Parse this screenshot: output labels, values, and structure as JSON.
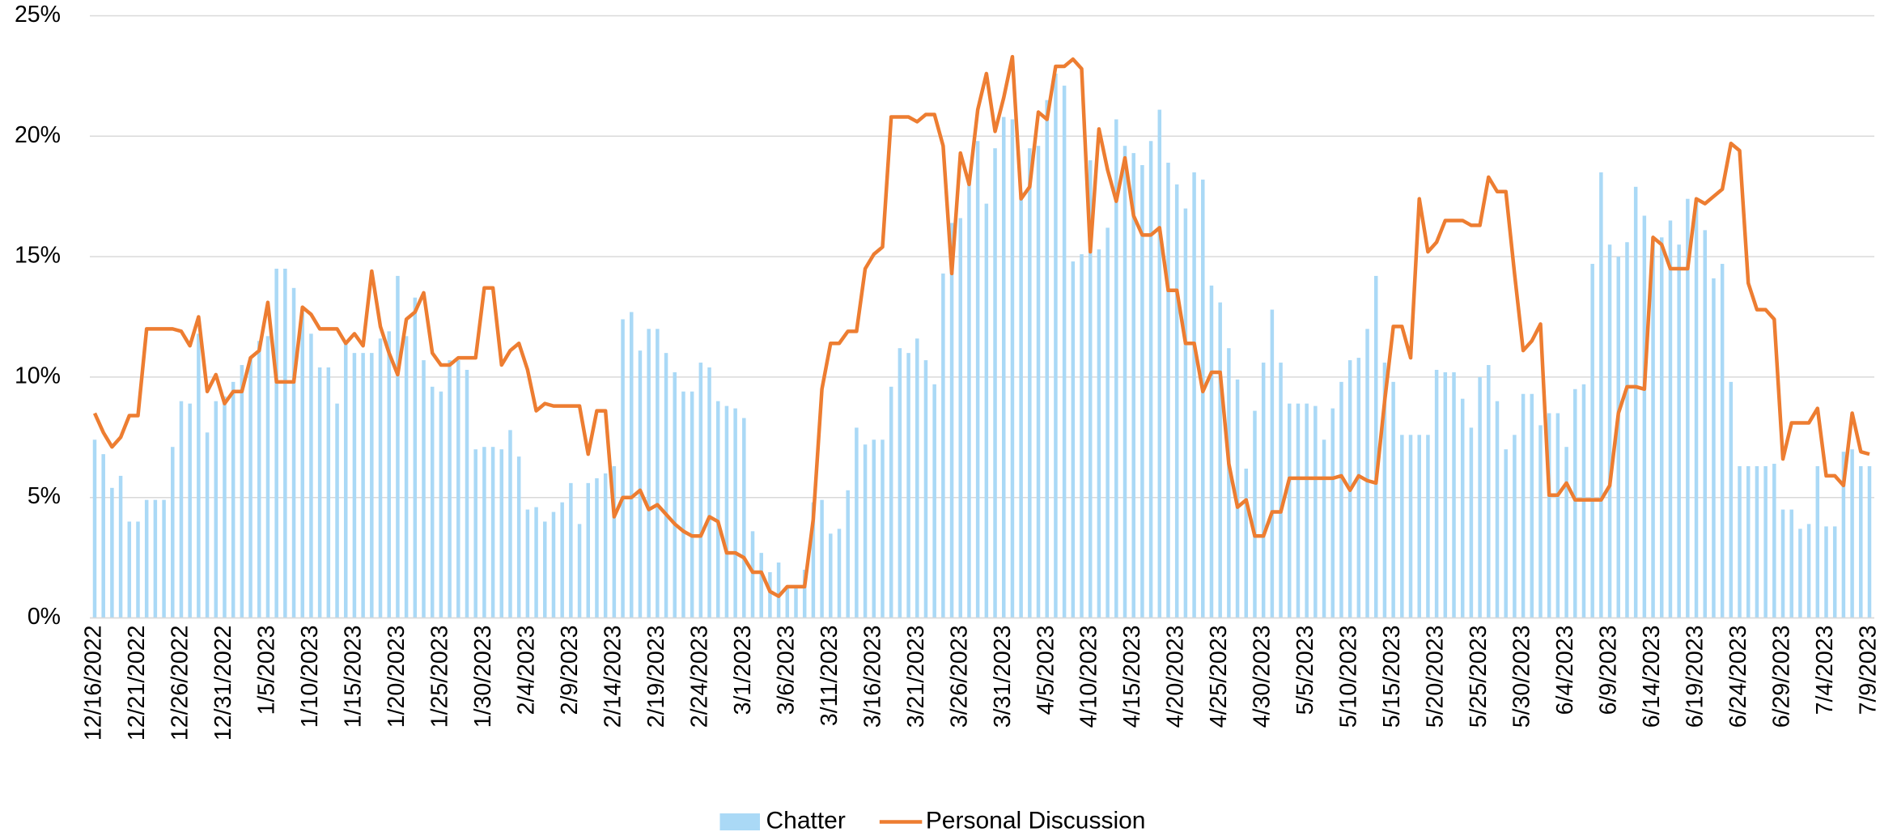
{
  "chart_data": {
    "type": "bar",
    "categories": [
      "12/16/2022",
      null,
      null,
      null,
      null,
      "12/21/2022",
      null,
      null,
      null,
      null,
      "12/26/2022",
      null,
      null,
      null,
      null,
      "12/31/2022",
      null,
      null,
      null,
      null,
      "1/5/2023",
      null,
      null,
      null,
      null,
      "1/10/2023",
      null,
      null,
      null,
      null,
      "1/15/2023",
      null,
      null,
      null,
      null,
      "1/20/2023",
      null,
      null,
      null,
      null,
      "1/25/2023",
      null,
      null,
      null,
      null,
      "1/30/2023",
      null,
      null,
      null,
      null,
      "2/4/2023",
      null,
      null,
      null,
      null,
      "2/9/2023",
      null,
      null,
      null,
      null,
      "2/14/2023",
      null,
      null,
      null,
      null,
      "2/19/2023",
      null,
      null,
      null,
      null,
      "2/24/2023",
      null,
      null,
      null,
      null,
      "3/1/2023",
      null,
      null,
      null,
      null,
      "3/6/2023",
      null,
      null,
      null,
      null,
      "3/11/2023",
      null,
      null,
      null,
      null,
      "3/16/2023",
      null,
      null,
      null,
      null,
      "3/21/2023",
      null,
      null,
      null,
      null,
      "3/26/2023",
      null,
      null,
      null,
      null,
      "3/31/2023",
      null,
      null,
      null,
      null,
      "4/5/2023",
      null,
      null,
      null,
      null,
      "4/10/2023",
      null,
      null,
      null,
      null,
      "4/15/2023",
      null,
      null,
      null,
      null,
      "4/20/2023",
      null,
      null,
      null,
      null,
      "4/25/2023",
      null,
      null,
      null,
      null,
      "4/30/2023",
      null,
      null,
      null,
      null,
      "5/5/2023",
      null,
      null,
      null,
      null,
      "5/10/2023",
      null,
      null,
      null,
      null,
      "5/15/2023",
      null,
      null,
      null,
      null,
      "5/20/2023",
      null,
      null,
      null,
      null,
      "5/25/2023",
      null,
      null,
      null,
      null,
      "5/30/2023",
      null,
      null,
      null,
      null,
      "6/4/2023",
      null,
      null,
      null,
      null,
      "6/9/2023",
      null,
      null,
      null,
      null,
      "6/14/2023",
      null,
      null,
      null,
      null,
      "6/19/2023",
      null,
      null,
      null,
      null,
      "6/24/2023",
      null,
      null,
      null,
      null,
      "6/29/2023",
      null,
      null,
      null,
      null,
      "7/4/2023",
      null,
      null,
      null,
      null,
      "7/9/2023"
    ],
    "series": [
      {
        "name": "Chatter",
        "type": "bar",
        "color": "#aad9f6",
        "values": [
          7.4,
          6.8,
          5.4,
          5.9,
          4.0,
          4.0,
          4.9,
          4.9,
          4.9,
          7.1,
          9.0,
          8.9,
          11.8,
          7.7,
          9.0,
          9.2,
          9.8,
          10.5,
          10.8,
          11.5,
          11.7,
          14.5,
          14.5,
          13.7,
          12.7,
          11.8,
          10.4,
          10.4,
          8.9,
          11.5,
          11.0,
          11.0,
          11.0,
          11.6,
          11.9,
          14.2,
          11.7,
          13.3,
          10.7,
          9.6,
          9.4,
          10.7,
          10.7,
          10.3,
          7.0,
          7.1,
          7.1,
          7.0,
          7.8,
          6.7,
          4.5,
          4.6,
          4.0,
          4.4,
          4.8,
          5.6,
          3.9,
          5.6,
          5.8,
          6.0,
          6.3,
          12.4,
          12.7,
          11.1,
          12.0,
          12.0,
          11.0,
          10.2,
          9.4,
          9.4,
          10.6,
          10.4,
          9.0,
          8.8,
          8.7,
          8.3,
          3.6,
          2.7,
          1.9,
          2.3,
          1.3,
          1.3,
          2.0,
          4.8,
          4.9,
          3.5,
          3.7,
          5.3,
          7.9,
          7.2,
          7.4,
          7.4,
          9.6,
          11.2,
          11.0,
          11.6,
          10.7,
          9.7,
          14.3,
          16.4,
          16.6,
          18.3,
          19.8,
          17.2,
          19.5,
          20.8,
          20.7,
          17.7,
          19.5,
          19.6,
          21.5,
          22.6,
          22.1,
          14.8,
          15.1,
          19.0,
          15.3,
          16.2,
          20.7,
          19.6,
          19.3,
          18.8,
          19.8,
          21.1,
          18.9,
          18.0,
          17.0,
          18.5,
          18.2,
          13.8,
          13.1,
          11.2,
          9.9,
          6.2,
          8.6,
          10.6,
          12.8,
          10.6,
          8.9,
          8.9,
          8.9,
          8.8,
          7.4,
          8.7,
          9.8,
          10.7,
          10.8,
          12.0,
          14.2,
          10.6,
          9.8,
          7.6,
          7.6,
          7.6,
          7.6,
          10.3,
          10.2,
          10.2,
          9.1,
          7.9,
          10.0,
          10.5,
          9.0,
          7.0,
          7.6,
          9.3,
          9.3,
          8.0,
          8.5,
          8.5,
          7.1,
          9.5,
          9.7,
          14.7,
          18.5,
          15.5,
          15.0,
          15.6,
          17.9,
          16.7,
          15.8,
          15.8,
          16.5,
          15.5,
          17.4,
          17.4,
          16.1,
          14.1,
          14.7,
          9.8,
          6.3,
          6.3,
          6.3,
          6.3,
          6.4,
          4.5,
          4.5,
          3.7,
          3.9,
          6.3,
          3.8,
          3.8,
          6.9,
          7.0,
          6.3,
          6.3
        ]
      },
      {
        "name": "Personal Discussion",
        "type": "line",
        "color": "#ed7d31",
        "values": [
          8.5,
          7.7,
          7.1,
          7.5,
          8.4,
          8.4,
          12.0,
          12.0,
          12.0,
          12.0,
          11.9,
          11.3,
          12.5,
          9.4,
          10.1,
          8.9,
          9.4,
          9.4,
          10.8,
          11.1,
          13.1,
          9.8,
          9.8,
          9.8,
          12.9,
          12.6,
          12.0,
          12.0,
          12.0,
          11.4,
          11.8,
          11.3,
          14.4,
          12.1,
          11.0,
          10.1,
          12.4,
          12.7,
          13.5,
          11.0,
          10.5,
          10.5,
          10.8,
          10.8,
          10.8,
          13.7,
          13.7,
          10.5,
          11.1,
          11.4,
          10.3,
          8.6,
          8.9,
          8.8,
          8.8,
          8.8,
          8.8,
          6.8,
          8.6,
          8.6,
          4.2,
          5.0,
          5.0,
          5.3,
          4.5,
          4.7,
          4.3,
          3.9,
          3.6,
          3.4,
          3.4,
          4.2,
          4.0,
          2.7,
          2.7,
          2.5,
          1.9,
          1.9,
          1.1,
          0.9,
          1.3,
          1.3,
          1.3,
          4.1,
          9.5,
          11.4,
          11.4,
          11.9,
          11.9,
          14.5,
          15.1,
          15.4,
          20.8,
          20.8,
          20.8,
          20.6,
          20.9,
          20.9,
          19.6,
          14.3,
          19.3,
          18.0,
          21.1,
          22.6,
          20.2,
          21.6,
          23.3,
          17.4,
          17.9,
          21.0,
          20.7,
          22.9,
          22.9,
          23.2,
          22.8,
          15.2,
          20.3,
          18.6,
          17.3,
          19.1,
          16.7,
          15.9,
          15.9,
          16.2,
          13.6,
          13.6,
          11.4,
          11.4,
          9.4,
          10.2,
          10.2,
          6.4,
          4.6,
          4.9,
          3.4,
          3.4,
          4.4,
          4.4,
          5.8,
          5.8,
          5.8,
          5.8,
          5.8,
          5.8,
          5.9,
          5.3,
          5.9,
          5.7,
          5.6,
          9.0,
          12.1,
          12.1,
          10.8,
          17.4,
          15.2,
          15.6,
          16.5,
          16.5,
          16.5,
          16.3,
          16.3,
          18.3,
          17.7,
          17.7,
          14.3,
          11.1,
          11.5,
          12.2,
          5.1,
          5.1,
          5.6,
          4.9,
          4.9,
          4.9,
          4.9,
          5.5,
          8.5,
          9.6,
          9.6,
          9.5,
          15.8,
          15.5,
          14.5,
          14.5,
          14.5,
          17.4,
          17.2,
          17.5,
          17.8,
          19.7,
          19.4,
          13.9,
          12.8,
          12.8,
          12.4,
          6.6,
          8.1,
          8.1,
          8.1,
          8.7,
          5.9,
          5.9,
          5.5,
          8.5,
          6.9,
          6.8
        ]
      }
    ],
    "ylim": [
      0,
      25
    ],
    "yticks": [
      {
        "value": 0,
        "label": "0%"
      },
      {
        "value": 5,
        "label": "5%"
      },
      {
        "value": 10,
        "label": "10%"
      },
      {
        "value": 15,
        "label": "15%"
      },
      {
        "value": 20,
        "label": "20%"
      },
      {
        "value": 25,
        "label": "25%"
      }
    ],
    "grid": true,
    "legend": "bottom"
  }
}
